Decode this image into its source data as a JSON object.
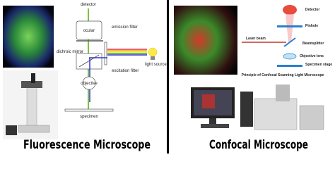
{
  "left": {
    "title": "Fluorescence Microscope",
    "labels": {
      "detector": "detector",
      "ocular": "ocular",
      "emission_filter": "emission filter",
      "dichroic_mirror": "dichroic mirror",
      "light_source": "light source",
      "excitation_filter": "excitation filter",
      "objective": "objective",
      "specimen": "specimen"
    }
  },
  "right": {
    "title": "Confocal Microscope",
    "labels": {
      "detector": "Detector",
      "pinhole": "Pinhole",
      "laser_beam": "Laser beam",
      "beamsplitter": "Beamsplitter",
      "objective_lens": "Objective lens",
      "specimen_stage": "Specimen stage"
    },
    "caption": "Principle of Confocal Scanning Light Microscope"
  }
}
